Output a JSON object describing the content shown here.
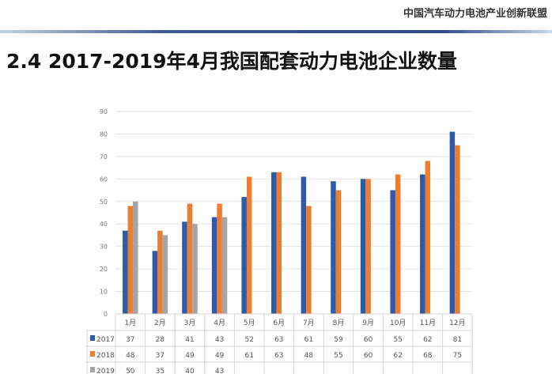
{
  "header": {
    "organization": "中国汽车动力电池产业创新联盟"
  },
  "slide": {
    "title": "2.4 2017-2019年4月我国配套动力电池企业数量"
  },
  "chart_data": {
    "type": "bar",
    "categories": [
      "1月",
      "2月",
      "3月",
      "4月",
      "5月",
      "6月",
      "7月",
      "8月",
      "9月",
      "10月",
      "11月",
      "12月"
    ],
    "series": [
      {
        "name": "2017",
        "color": "#2e5aa8",
        "values": [
          37,
          28,
          41,
          43,
          52,
          63,
          61,
          59,
          60,
          55,
          62,
          81
        ]
      },
      {
        "name": "2018",
        "color": "#ed7d31",
        "values": [
          48,
          37,
          49,
          49,
          61,
          63,
          48,
          55,
          60,
          62,
          68,
          75
        ]
      },
      {
        "name": "2019",
        "color": "#a5a5a5",
        "values": [
          50,
          35,
          40,
          43,
          null,
          null,
          null,
          null,
          null,
          null,
          null,
          null
        ]
      }
    ],
    "ylim": [
      0,
      90
    ],
    "yticks": [
      0,
      10,
      20,
      30,
      40,
      50,
      60,
      70,
      80,
      90
    ],
    "grid": true,
    "legend": "data table"
  }
}
